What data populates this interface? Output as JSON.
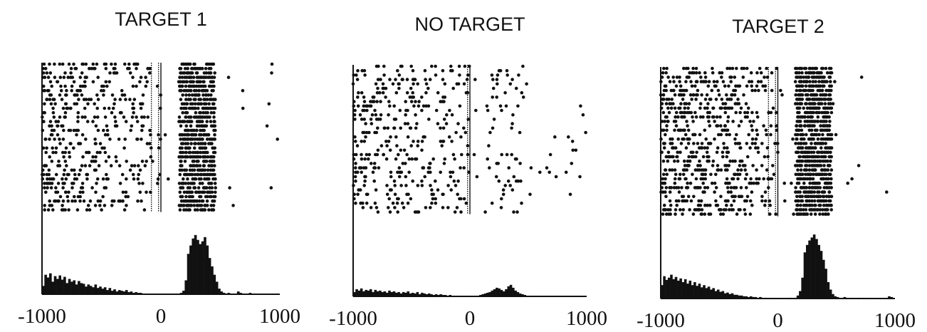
{
  "colors": {
    "ink": "#111111",
    "background": "#ffffff"
  },
  "chart_data": [
    {
      "type": "raster+histogram",
      "title": "TARGET 1",
      "xlim": [
        -1000,
        1000
      ],
      "xticks": [
        {
          "value": -1000,
          "label": "-1000"
        },
        {
          "value": 0,
          "label": "0"
        },
        {
          "value": 1000,
          "label": "1000"
        }
      ],
      "xlabel": "",
      "ylabel": "",
      "raster": {
        "trials": 34,
        "burst_window": [
          150,
          450
        ],
        "burst_rate": 0.55,
        "pre_rate": 0.22,
        "pre_decay": 0.75,
        "late_rate": 0.006,
        "marker_lines": [
          -80,
          -20,
          0
        ]
      },
      "histogram": {
        "bin_width": 20,
        "bins": [
          -1000,
          -980,
          -960,
          -940,
          -920,
          -900,
          -880,
          -860,
          -840,
          -820,
          -800,
          -780,
          -760,
          -740,
          -720,
          -700,
          -680,
          -660,
          -640,
          -620,
          -600,
          -580,
          -560,
          -540,
          -520,
          -500,
          -480,
          -460,
          -440,
          -420,
          -400,
          -380,
          -360,
          -340,
          -320,
          -300,
          -280,
          -260,
          -240,
          -220,
          -200,
          -180,
          -160,
          -140,
          -120,
          -100,
          -80,
          -60,
          -40,
          -20,
          0,
          20,
          40,
          60,
          80,
          100,
          120,
          140,
          160,
          180,
          200,
          220,
          240,
          260,
          280,
          300,
          320,
          340,
          360,
          380,
          400,
          420,
          440,
          460,
          480,
          500,
          520,
          540,
          560,
          580,
          600,
          620,
          640,
          660,
          680,
          700,
          720,
          740,
          760,
          780,
          800,
          820,
          840,
          860,
          880,
          900,
          920,
          940,
          960,
          980
        ],
        "counts": [
          12,
          28,
          24,
          30,
          18,
          26,
          22,
          27,
          21,
          25,
          16,
          22,
          18,
          20,
          14,
          19,
          16,
          15,
          11,
          14,
          12,
          10,
          14,
          9,
          11,
          8,
          10,
          6,
          9,
          5,
          7,
          4,
          6,
          5,
          4,
          6,
          3,
          4,
          2,
          3,
          2,
          2,
          1,
          1,
          1,
          1,
          0,
          0,
          1,
          0,
          0,
          0,
          1,
          0,
          0,
          1,
          0,
          0,
          2,
          5,
          20,
          58,
          70,
          80,
          85,
          78,
          72,
          76,
          82,
          70,
          52,
          40,
          28,
          18,
          8,
          4,
          2,
          1,
          2,
          1,
          0,
          1,
          4,
          2,
          1,
          0,
          1,
          2,
          1,
          0,
          1,
          0,
          0,
          0,
          0,
          0,
          0,
          0,
          0,
          0
        ],
        "ylim": [
          0,
          90
        ]
      }
    },
    {
      "type": "raster+histogram",
      "title": "NO TARGET",
      "xlim": [
        -1000,
        1000
      ],
      "xticks": [
        {
          "value": -1000,
          "label": "-1000"
        },
        {
          "value": 0,
          "label": "0"
        },
        {
          "value": 1000,
          "label": "1000"
        }
      ],
      "xlabel": "",
      "ylabel": "",
      "raster": {
        "trials": 34,
        "burst_window": [
          150,
          450
        ],
        "burst_rate": 0.05,
        "pre_rate": 0.14,
        "pre_decay": 0.45,
        "late_rate": 0.012,
        "marker_lines": [
          -20,
          0
        ]
      },
      "histogram": {
        "bin_width": 20,
        "bins": [
          -1000,
          -980,
          -960,
          -940,
          -920,
          -900,
          -880,
          -860,
          -840,
          -820,
          -800,
          -780,
          -760,
          -740,
          -720,
          -700,
          -680,
          -660,
          -640,
          -620,
          -600,
          -580,
          -560,
          -540,
          -520,
          -500,
          -480,
          -460,
          -440,
          -420,
          -400,
          -380,
          -360,
          -340,
          -320,
          -300,
          -280,
          -260,
          -240,
          -220,
          -200,
          -180,
          -160,
          -140,
          -120,
          -100,
          -80,
          -60,
          -40,
          -20,
          0,
          20,
          40,
          60,
          80,
          100,
          120,
          140,
          160,
          180,
          200,
          220,
          240,
          260,
          280,
          300,
          320,
          340,
          360,
          380,
          400,
          420,
          440,
          460,
          480,
          500,
          520,
          540,
          560,
          580,
          600,
          620,
          640,
          660,
          680,
          700,
          720,
          740,
          760,
          780,
          800,
          820,
          840,
          860,
          880,
          900,
          920,
          940,
          960,
          980
        ],
        "counts": [
          6,
          10,
          8,
          11,
          7,
          9,
          8,
          10,
          6,
          9,
          7,
          8,
          6,
          7,
          5,
          8,
          6,
          7,
          5,
          6,
          4,
          6,
          5,
          7,
          4,
          5,
          4,
          6,
          3,
          5,
          4,
          3,
          4,
          3,
          2,
          3,
          2,
          3,
          2,
          2,
          1,
          2,
          1,
          1,
          1,
          0,
          1,
          0,
          0,
          0,
          0,
          0,
          1,
          1,
          2,
          3,
          4,
          5,
          6,
          8,
          10,
          12,
          11,
          9,
          7,
          10,
          14,
          16,
          12,
          8,
          6,
          4,
          3,
          2,
          1,
          1,
          0,
          1,
          0,
          0,
          0,
          0,
          0,
          0,
          0,
          0,
          0,
          0,
          0,
          0,
          0,
          0,
          0,
          0,
          0,
          0,
          0,
          0,
          0,
          0
        ],
        "ylim": [
          0,
          90
        ]
      }
    },
    {
      "type": "raster+histogram",
      "title": "TARGET 2",
      "xlim": [
        -1000,
        1000
      ],
      "xticks": [
        {
          "value": -1000,
          "label": "-1000"
        },
        {
          "value": 0,
          "label": "0"
        },
        {
          "value": 1000,
          "label": "1000"
        }
      ],
      "xlabel": "",
      "ylabel": "",
      "raster": {
        "trials": 34,
        "burst_window": [
          150,
          450
        ],
        "burst_rate": 0.62,
        "pre_rate": 0.28,
        "pre_decay": 0.7,
        "late_rate": 0.007,
        "marker_lines": [
          -80,
          -20,
          0
        ]
      },
      "histogram": {
        "bin_width": 20,
        "bins": [
          -1000,
          -980,
          -960,
          -940,
          -920,
          -900,
          -880,
          -860,
          -840,
          -820,
          -800,
          -780,
          -760,
          -740,
          -720,
          -700,
          -680,
          -660,
          -640,
          -620,
          -600,
          -580,
          -560,
          -540,
          -520,
          -500,
          -480,
          -460,
          -440,
          -420,
          -400,
          -380,
          -360,
          -340,
          -320,
          -300,
          -280,
          -260,
          -240,
          -220,
          -200,
          -180,
          -160,
          -140,
          -120,
          -100,
          -80,
          -60,
          -40,
          -20,
          0,
          20,
          40,
          60,
          80,
          100,
          120,
          140,
          160,
          180,
          200,
          220,
          240,
          260,
          280,
          300,
          320,
          340,
          360,
          380,
          400,
          420,
          440,
          460,
          480,
          500,
          520,
          540,
          560,
          580,
          600,
          620,
          640,
          660,
          680,
          700,
          720,
          740,
          760,
          780,
          800,
          820,
          840,
          860,
          880,
          900,
          920,
          940,
          960,
          980
        ],
        "counts": [
          18,
          30,
          25,
          28,
          32,
          26,
          29,
          24,
          27,
          22,
          26,
          20,
          24,
          18,
          22,
          17,
          20,
          15,
          18,
          14,
          16,
          12,
          14,
          10,
          12,
          9,
          10,
          7,
          8,
          6,
          7,
          5,
          5,
          4,
          4,
          3,
          3,
          2,
          3,
          2,
          2,
          1,
          2,
          1,
          1,
          1,
          0,
          0,
          0,
          0,
          0,
          0,
          0,
          0,
          0,
          1,
          0,
          1,
          4,
          10,
          28,
          62,
          72,
          78,
          82,
          86,
          80,
          72,
          64,
          52,
          40,
          22,
          12,
          6,
          3,
          2,
          1,
          1,
          2,
          1,
          0,
          1,
          0,
          0,
          1,
          0,
          1,
          0,
          0,
          0,
          0,
          0,
          0,
          0,
          0,
          0,
          1,
          3,
          2,
          0
        ],
        "ylim": [
          0,
          90
        ]
      }
    }
  ]
}
